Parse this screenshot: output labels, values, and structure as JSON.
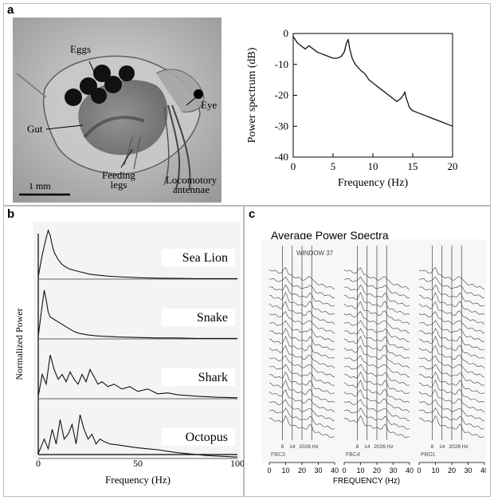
{
  "panels": {
    "a": {
      "label": "a",
      "photo": {
        "labels": {
          "eggs": "Eggs",
          "eye": "Eye",
          "gut": "Gut",
          "feeding_legs": "Feeding legs",
          "locomotory_antennae": "Locomotory antennae",
          "scale_bar": "1 mm"
        }
      },
      "chart_data": {
        "type": "line",
        "ylabel": "Power spectrum (dB)",
        "xlabel": "Frequency (Hz)",
        "xlim": [
          0,
          20
        ],
        "ylim": [
          -40,
          0
        ],
        "xticks": [
          "0",
          "5",
          "10",
          "15",
          "20"
        ],
        "yticks": [
          "0",
          "-10",
          "-20",
          "-30",
          "-40"
        ],
        "series": [
          {
            "x": [
              0,
              0.5,
              1,
              1.5,
              2,
              2.5,
              3,
              3.5,
              4,
              4.5,
              5,
              5.5,
              6,
              6.4,
              6.7,
              6.9,
              7.1,
              7.4,
              7.8,
              8.5,
              9,
              9.5,
              10,
              10.5,
              11,
              11.5,
              12,
              12.5,
              13,
              13.5,
              13.8,
              14,
              14.2,
              14.6,
              15,
              15.5,
              16,
              16.5,
              17,
              17.5,
              18,
              18.5,
              19,
              19.5,
              20
            ],
            "y": [
              -1,
              -3,
              -4,
              -5,
              -4,
              -5,
              -6,
              -6.5,
              -7,
              -7.5,
              -8,
              -8,
              -7.5,
              -6,
              -3,
              -2,
              -5,
              -8,
              -10,
              -12,
              -13,
              -15,
              -16,
              -17,
              -18,
              -19,
              -20,
              -21,
              -22,
              -21,
              -20,
              -19,
              -21,
              -24,
              -25,
              -25.5,
              -26,
              -26.5,
              -27,
              -27.5,
              -28,
              -28.5,
              -29,
              -29.5,
              -30
            ]
          }
        ]
      }
    },
    "b": {
      "label": "b",
      "chart_data": {
        "type": "line",
        "ylabel": "Normalized Power",
        "xlabel": "Frequency (Hz)",
        "xlim": [
          0,
          100
        ],
        "xticks": [
          "0",
          "50",
          "100"
        ],
        "series": [
          {
            "name": "Sea Lion",
            "x": [
              0,
              2,
              4,
              5,
              6,
              7,
              8,
              10,
              12,
              15,
              18,
              22,
              26,
              30,
              35,
              40,
              50,
              60,
              70,
              80,
              90,
              100
            ],
            "y": [
              0.05,
              0.5,
              0.85,
              1.0,
              0.9,
              0.7,
              0.55,
              0.4,
              0.3,
              0.22,
              0.18,
              0.14,
              0.1,
              0.08,
              0.06,
              0.05,
              0.03,
              0.02,
              0.015,
              0.01,
              0.01,
              0.01
            ]
          },
          {
            "name": "Snake",
            "x": [
              0,
              2,
              3,
              4,
              5,
              6,
              8,
              10,
              12,
              14,
              16,
              18,
              20,
              25,
              30,
              35,
              40,
              50,
              60,
              70,
              80,
              90,
              100
            ],
            "y": [
              0.05,
              0.7,
              1.0,
              0.8,
              0.55,
              0.45,
              0.4,
              0.35,
              0.3,
              0.25,
              0.2,
              0.15,
              0.12,
              0.08,
              0.06,
              0.05,
              0.04,
              0.03,
              0.02,
              0.02,
              0.01,
              0.01,
              0.01
            ]
          },
          {
            "name": "Shark",
            "x": [
              0,
              2,
              4,
              6,
              8,
              10,
              12,
              14,
              16,
              18,
              20,
              22,
              24,
              26,
              28,
              30,
              32,
              35,
              38,
              42,
              46,
              50,
              55,
              60,
              65,
              70,
              80,
              90,
              100
            ],
            "y": [
              0.05,
              0.5,
              0.3,
              0.9,
              0.6,
              0.4,
              0.5,
              0.35,
              0.55,
              0.4,
              0.3,
              0.5,
              0.35,
              0.6,
              0.45,
              0.3,
              0.35,
              0.25,
              0.3,
              0.2,
              0.25,
              0.15,
              0.2,
              0.1,
              0.12,
              0.08,
              0.05,
              0.03,
              0.02
            ]
          },
          {
            "name": "Octopus",
            "x": [
              0,
              3,
              5,
              7,
              9,
              11,
              13,
              15,
              17,
              19,
              21,
              23,
              25,
              27,
              29,
              31,
              33,
              36,
              40,
              45,
              50,
              55,
              60,
              65,
              70,
              75,
              80,
              85,
              90,
              95,
              100
            ],
            "y": [
              0.1,
              0.4,
              0.2,
              0.6,
              0.3,
              0.8,
              0.4,
              0.5,
              0.7,
              0.3,
              0.9,
              0.6,
              0.4,
              0.5,
              0.3,
              0.4,
              0.35,
              0.3,
              0.28,
              0.25,
              0.22,
              0.2,
              0.18,
              0.15,
              0.12,
              0.1,
              0.08,
              0.06,
              0.05,
              0.04,
              0.03
            ]
          }
        ]
      }
    },
    "c": {
      "label": "c",
      "title": "Average Power Spectra",
      "window_label": "WINDOW 37",
      "xlabel": "FREQUENCY (Hz)",
      "xlim": [
        0,
        40
      ],
      "xticks": [
        "0",
        "10",
        "20",
        "30",
        "40"
      ],
      "marker_labels": [
        "8",
        "14",
        "20",
        "26 Hz"
      ],
      "marker_freqs": [
        8,
        14,
        20,
        26
      ],
      "subpanels": [
        {
          "channel": "FBC3"
        },
        {
          "channel": "FBC4"
        },
        {
          "channel": "PBO1"
        }
      ],
      "traces_per_subpanel": 18,
      "chart_data": {
        "type": "line",
        "note_free": true
      }
    }
  }
}
